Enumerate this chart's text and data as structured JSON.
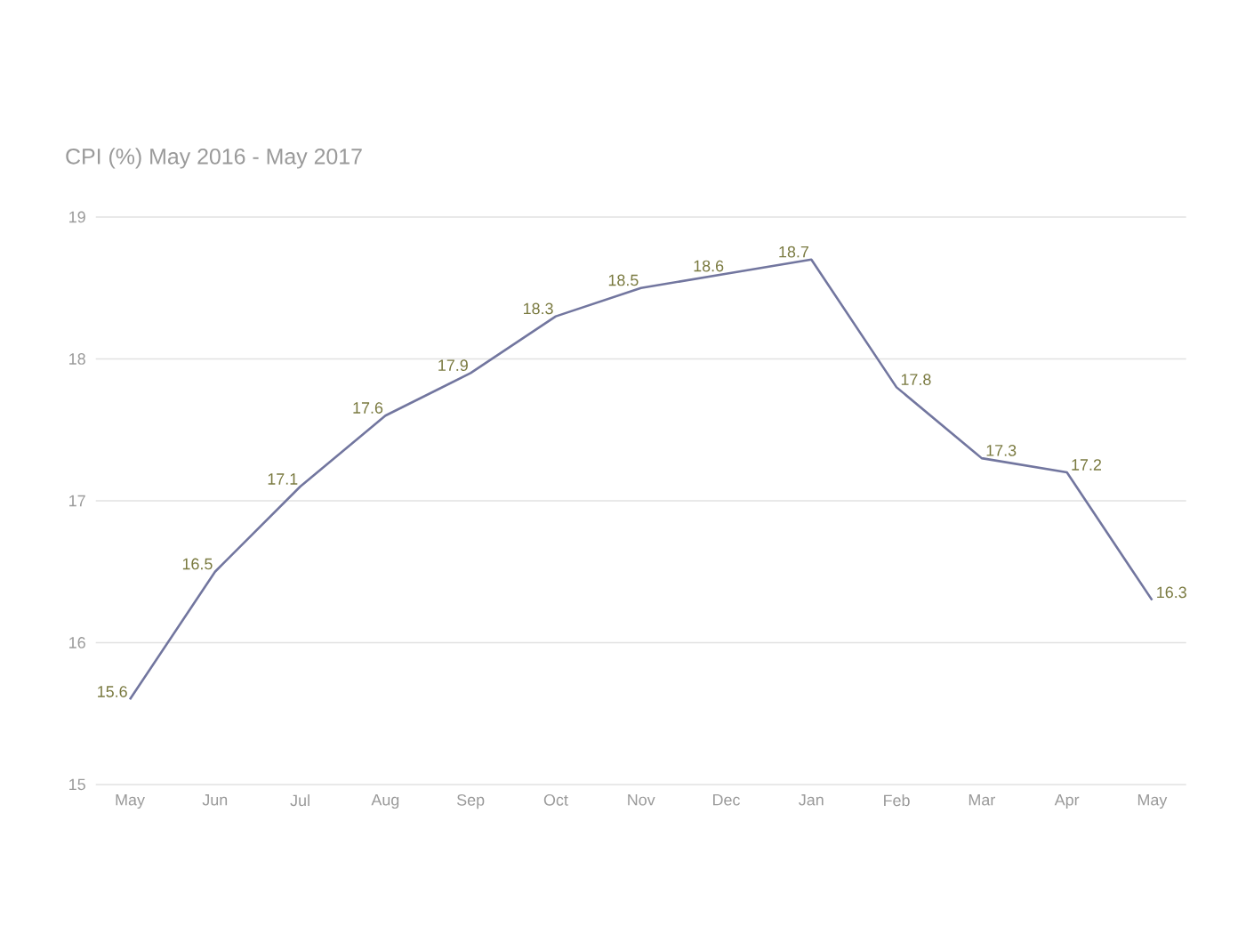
{
  "chart_data": {
    "type": "line",
    "title": "CPI (%)  May 2016 - May 2017",
    "categories": [
      "May",
      "Jun",
      "Jul",
      "Aug",
      "Sep",
      "Oct",
      "Nov",
      "Dec",
      "Jan",
      "Feb",
      "Mar",
      "Apr",
      "May"
    ],
    "values": [
      15.6,
      16.5,
      17.1,
      17.6,
      17.9,
      18.3,
      18.5,
      18.6,
      18.7,
      17.8,
      17.3,
      17.2,
      16.3
    ],
    "color": "#72769f",
    "ylim": [
      15,
      19
    ],
    "yticks": [
      15,
      16,
      17,
      18,
      19
    ],
    "grid": "y",
    "data_labels": true,
    "marker": "none",
    "line_style": "solid"
  }
}
